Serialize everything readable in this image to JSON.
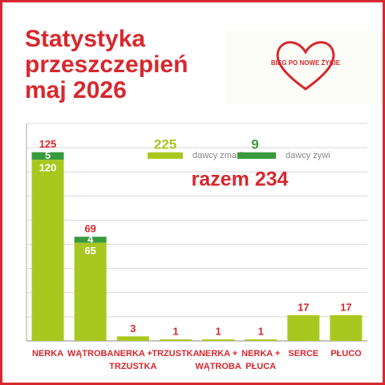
{
  "chart_data": {
    "type": "bar",
    "stacked": true,
    "title": "Statystyka przeszczepień",
    "subtitle": "maj 2026",
    "logo_text": "BIEG PO NOWE ŻYCIE",
    "annotation": "razem 234",
    "categories": [
      "NERKA",
      "WĄTROBA",
      "NERKA +\nTRZUSTKA",
      "TRZUSTKA",
      "NERKA +\nWĄTROBA",
      "NERKA +\nPŁUCA",
      "SERCE",
      "PŁUCO"
    ],
    "series": [
      {
        "name": "dawcy zmarli",
        "total": 225,
        "color": "#a9c81f",
        "values": [
          120,
          65,
          3,
          1,
          1,
          1,
          17,
          17
        ]
      },
      {
        "name": "dawcy żywi",
        "total": 9,
        "color": "#3a9b3c",
        "values": [
          5,
          4,
          null,
          null,
          null,
          null,
          null,
          null
        ]
      }
    ],
    "totals": [
      125,
      69,
      3,
      1,
      1,
      1,
      17,
      17
    ],
    "ylim": [
      0,
      144
    ],
    "yticks": [
      0,
      16,
      32,
      48,
      64,
      80,
      96,
      112,
      128,
      144
    ],
    "grid": true
  }
}
